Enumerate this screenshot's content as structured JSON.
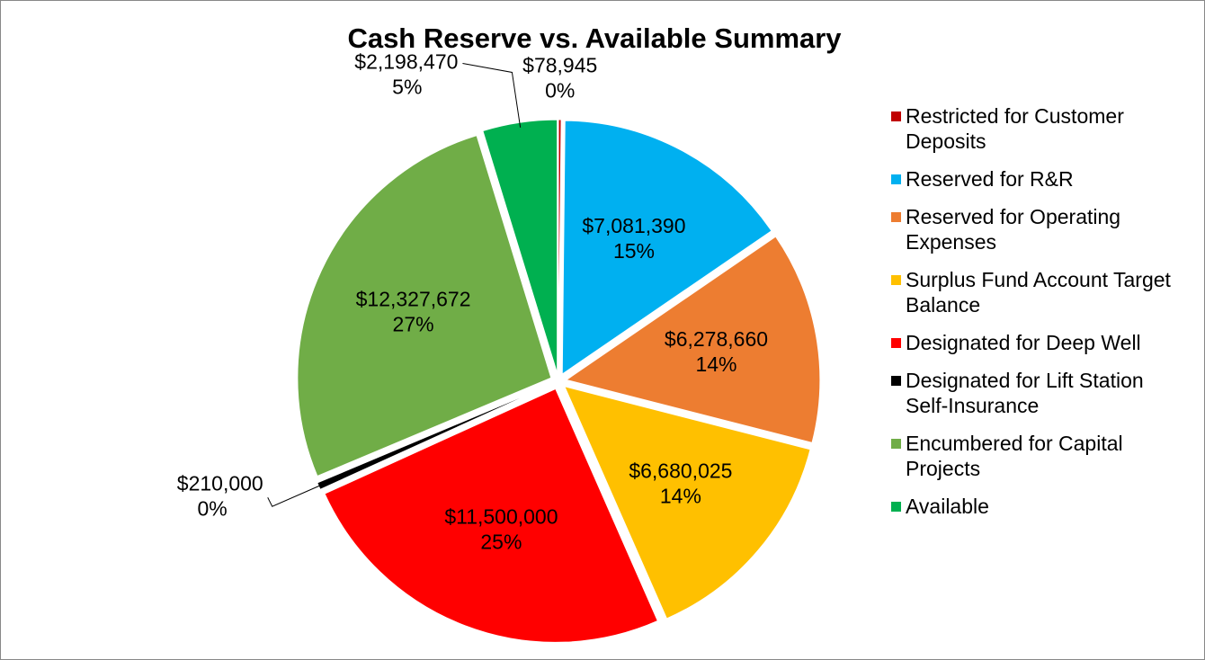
{
  "chart_data": {
    "type": "pie",
    "title": "Cash Reserve vs. Available Summary",
    "categories": [
      "Restricted for Customer Deposits",
      "Reserved for R&R",
      "Reserved for Operating Expenses",
      "Surplus Fund Account Target Balance",
      "Designated for Deep Well",
      "Designated for Lift Station Self-Insurance",
      "Encumbered for Capital Projects",
      "Available"
    ],
    "values": [
      78945,
      7081390,
      6278660,
      6680025,
      11500000,
      210000,
      12327672,
      2198470
    ],
    "value_labels": [
      "$78,945",
      "$7,081,390",
      "$6,278,660",
      "$6,680,025",
      "$11,500,000",
      "$210,000",
      "$12,327,672",
      "$2,198,470"
    ],
    "percent_labels": [
      "0%",
      "15%",
      "14%",
      "14%",
      "25%",
      "0%",
      "27%",
      "5%"
    ],
    "colors": [
      "#c00000",
      "#00b0f0",
      "#ed7d31",
      "#ffc000",
      "#ff0000",
      "#000000",
      "#70ad47",
      "#00b050"
    ],
    "legend": "right"
  }
}
